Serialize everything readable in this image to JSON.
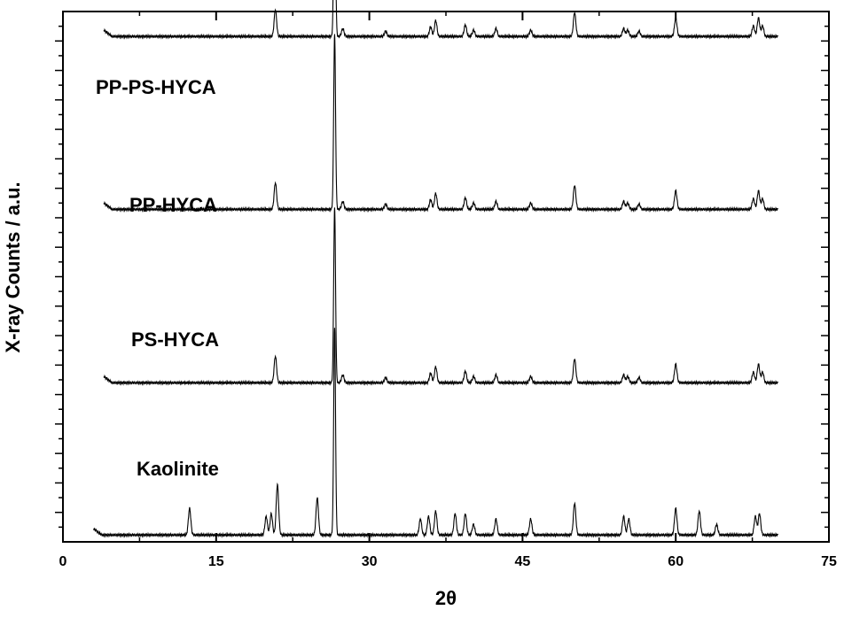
{
  "chart_data": {
    "type": "line",
    "title": "",
    "xlabel": "2θ",
    "ylabel": "X-ray Counts / a.u.",
    "xlim": [
      0,
      75
    ],
    "x_ticks": [
      0,
      15,
      30,
      45,
      60,
      75
    ],
    "ylim": [
      0,
      1
    ],
    "y_tick_labels": "none",
    "grid": false,
    "legend": "none (series labelled directly above each trace)",
    "series": [
      {
        "name": "Kaolinite",
        "x_range": [
          3,
          70
        ],
        "baseline": 0.013,
        "peaks": [
          [
            12.4,
            0.05
          ],
          [
            19.9,
            0.035
          ],
          [
            20.4,
            0.04
          ],
          [
            21.0,
            0.095
          ],
          [
            24.9,
            0.07
          ],
          [
            26.6,
            0.39
          ],
          [
            35.0,
            0.03
          ],
          [
            35.8,
            0.035
          ],
          [
            36.5,
            0.045
          ],
          [
            38.4,
            0.04
          ],
          [
            39.4,
            0.04
          ],
          [
            40.2,
            0.02
          ],
          [
            42.4,
            0.03
          ],
          [
            45.8,
            0.03
          ],
          [
            50.1,
            0.06
          ],
          [
            54.9,
            0.035
          ],
          [
            55.4,
            0.03
          ],
          [
            60.0,
            0.05
          ],
          [
            62.3,
            0.045
          ],
          [
            64.0,
            0.02
          ],
          [
            67.8,
            0.035
          ],
          [
            68.2,
            0.04
          ]
        ]
      },
      {
        "name": "PS-HYCA",
        "x_range": [
          4,
          70
        ],
        "baseline": 0.3,
        "peaks": [
          [
            20.8,
            0.05
          ],
          [
            26.6,
            0.33
          ],
          [
            27.4,
            0.015
          ],
          [
            31.6,
            0.01
          ],
          [
            36.0,
            0.018
          ],
          [
            36.5,
            0.03
          ],
          [
            39.4,
            0.022
          ],
          [
            40.2,
            0.012
          ],
          [
            42.4,
            0.015
          ],
          [
            45.8,
            0.012
          ],
          [
            50.1,
            0.045
          ],
          [
            54.9,
            0.015
          ],
          [
            55.3,
            0.012
          ],
          [
            56.4,
            0.01
          ],
          [
            60.0,
            0.035
          ],
          [
            67.6,
            0.02
          ],
          [
            68.1,
            0.035
          ],
          [
            68.5,
            0.02
          ]
        ]
      },
      {
        "name": "PP-HYCA",
        "x_range": [
          4,
          70
        ],
        "baseline": 0.627,
        "peaks": [
          [
            20.8,
            0.05
          ],
          [
            26.6,
            0.33
          ],
          [
            27.4,
            0.015
          ],
          [
            31.6,
            0.01
          ],
          [
            36.0,
            0.018
          ],
          [
            36.5,
            0.03
          ],
          [
            39.4,
            0.022
          ],
          [
            40.2,
            0.012
          ],
          [
            42.4,
            0.015
          ],
          [
            45.8,
            0.012
          ],
          [
            50.1,
            0.045
          ],
          [
            54.9,
            0.015
          ],
          [
            55.3,
            0.012
          ],
          [
            56.4,
            0.01
          ],
          [
            60.0,
            0.035
          ],
          [
            67.6,
            0.02
          ],
          [
            68.1,
            0.035
          ],
          [
            68.5,
            0.02
          ]
        ]
      },
      {
        "name": "PP-PS-HYCA",
        "x_range": [
          4,
          70
        ],
        "baseline": 0.953,
        "peaks": [
          [
            20.8,
            0.05
          ],
          [
            26.6,
            0.33
          ],
          [
            27.4,
            0.015
          ],
          [
            31.6,
            0.01
          ],
          [
            36.0,
            0.018
          ],
          [
            36.5,
            0.03
          ],
          [
            39.4,
            0.022
          ],
          [
            40.2,
            0.012
          ],
          [
            42.4,
            0.015
          ],
          [
            45.8,
            0.012
          ],
          [
            50.1,
            0.045
          ],
          [
            54.9,
            0.015
          ],
          [
            55.3,
            0.012
          ],
          [
            56.4,
            0.01
          ],
          [
            60.0,
            0.035
          ],
          [
            67.6,
            0.02
          ],
          [
            68.1,
            0.035
          ],
          [
            68.5,
            0.02
          ]
        ]
      }
    ],
    "annotations": [
      "PP-PS-HYCA",
      "PP-HYCA",
      "PS-HYCA",
      "Kaolinite"
    ]
  }
}
